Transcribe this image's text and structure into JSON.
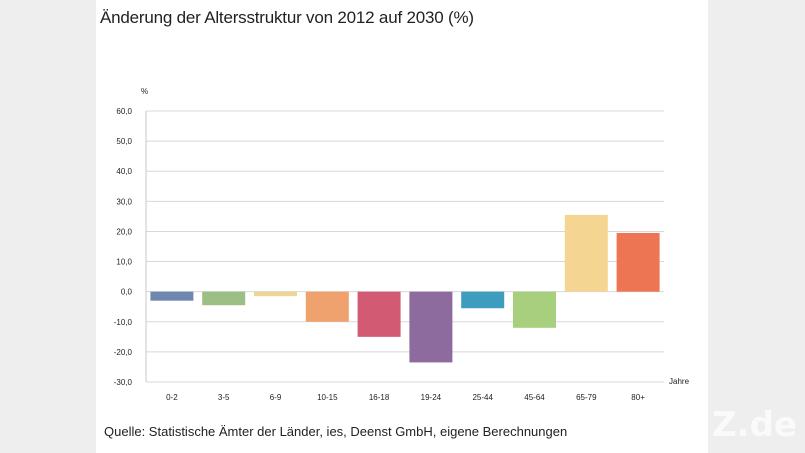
{
  "chart_data": {
    "type": "bar",
    "title": "Änderung der Altersstruktur von 2012 auf 2030 (%)",
    "ylabel": "%",
    "xlabel": "Jahre",
    "ylim": [
      -30,
      60
    ],
    "yticks": [
      "60,0",
      "50,0",
      "40,0",
      "30,0",
      "20,0",
      "10,0",
      "0,0",
      "-10,0",
      "-20,0",
      "-30,0"
    ],
    "ytick_values": [
      60,
      50,
      40,
      30,
      20,
      10,
      0,
      -10,
      -20,
      -30
    ],
    "categories": [
      "0-2",
      "3-5",
      "6-9",
      "10-15",
      "16-18",
      "19-24",
      "25-44",
      "45-64",
      "65-79",
      "80+"
    ],
    "values": [
      -3,
      -4.5,
      -1.5,
      -10,
      -15,
      -23.5,
      -5.5,
      -12,
      25.5,
      19.5
    ],
    "colors": [
      "#7088b0",
      "#9cbf86",
      "#edd595",
      "#f0a26e",
      "#d25a72",
      "#8d6b9e",
      "#3e9cbf",
      "#a8cf7d",
      "#f5d592",
      "#ee7553"
    ],
    "grid": true,
    "legend": "none"
  },
  "source": "Quelle: Statistische Ämter der Länder, ies, Deenst GmbH, eigene Berechnungen",
  "watermark": "Z.de"
}
